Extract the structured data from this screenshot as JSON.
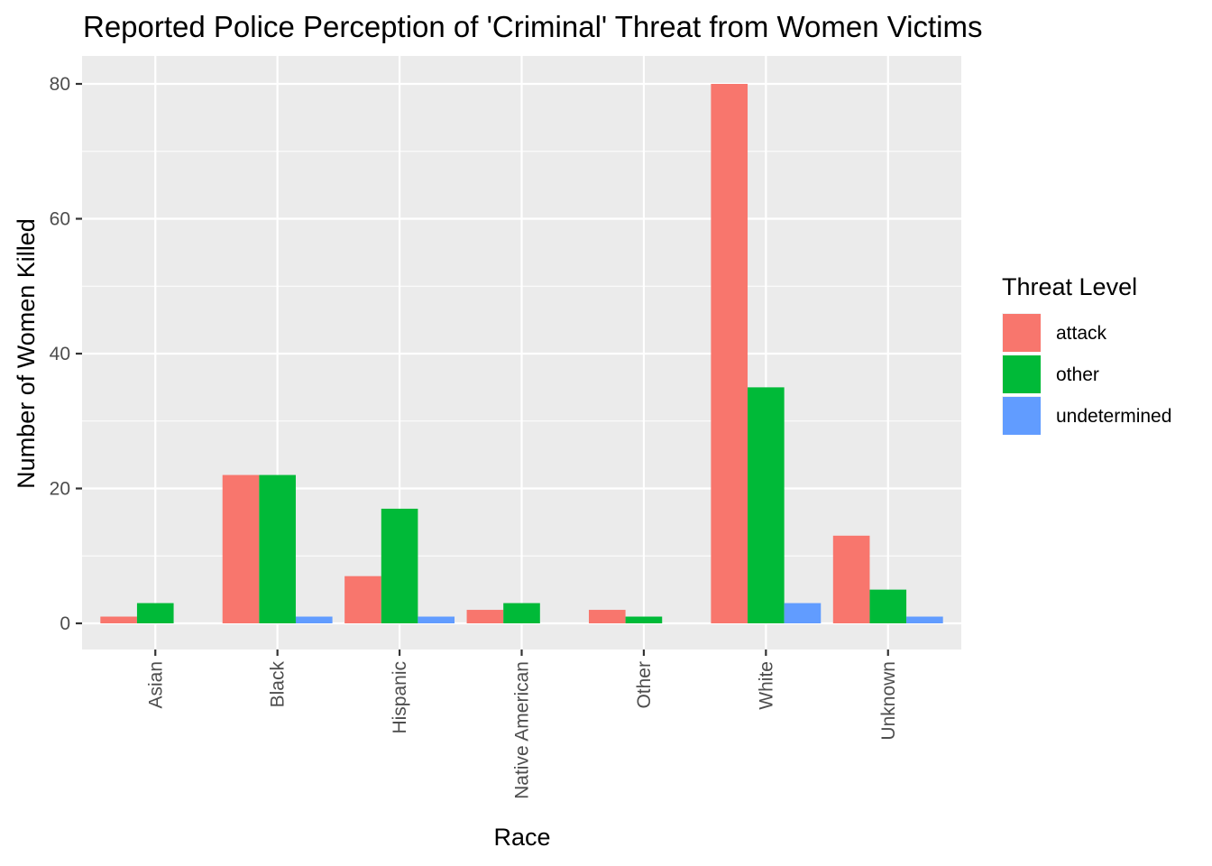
{
  "chart_data": {
    "type": "bar",
    "title": "Reported Police Perception of 'Criminal' Threat from Women Victims",
    "xlabel": "Race",
    "ylabel": "Number of Women Killed",
    "categories": [
      "Asian",
      "Black",
      "Hispanic",
      "Native American",
      "Other",
      "White",
      "Unknown"
    ],
    "series": [
      {
        "name": "attack",
        "values": [
          1,
          22,
          7,
          2,
          2,
          80,
          13
        ]
      },
      {
        "name": "other",
        "values": [
          3,
          22,
          17,
          3,
          1,
          35,
          5
        ]
      },
      {
        "name": "undetermined",
        "values": [
          0,
          1,
          1,
          0,
          0,
          3,
          1
        ]
      }
    ],
    "ylim": [
      0,
      80
    ],
    "yticks": [
      0,
      20,
      40,
      60,
      80
    ],
    "legend": {
      "title": "Threat Level",
      "position": "right"
    },
    "grid": true,
    "colors": {
      "attack": "#F8766D",
      "other": "#00BA38",
      "undetermined": "#619CFF",
      "panel_background": "#EBEBEB",
      "grid": "#FFFFFF"
    }
  }
}
